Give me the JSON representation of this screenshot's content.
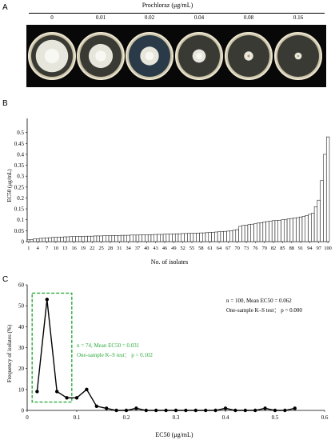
{
  "panel_letters": [
    "A",
    "B",
    "C"
  ],
  "panelA": {
    "title": "Prochloraz (μg/mL)",
    "concentrations": [
      "0",
      "0.01",
      "0.02",
      "0.04",
      "0.08",
      "0.16"
    ],
    "colony_size": [
      0.78,
      0.58,
      0.45,
      0.32,
      0.22,
      0.17
    ]
  },
  "chart_data": [
    {
      "type": "bar",
      "panel": "B",
      "ylabel": "EC50 (μg/mL)",
      "xlabel": "No. of isolates",
      "ylim": [
        0,
        0.55
      ],
      "yticks": [
        0,
        0.05,
        0.1,
        0.15,
        0.2,
        0.25,
        0.3,
        0.35,
        0.4,
        0.45,
        0.5
      ],
      "xticks": [
        "1",
        "4",
        "7",
        "10",
        "13",
        "16",
        "19",
        "22",
        "25",
        "28",
        "31",
        "34",
        "37",
        "40",
        "43",
        "46",
        "49",
        "52",
        "55",
        "58",
        "61",
        "64",
        "67",
        "70",
        "73",
        "76",
        "79",
        "82",
        "85",
        "88",
        "91",
        "94",
        "97",
        "100"
      ],
      "values": [
        0.008,
        0.01,
        0.012,
        0.013,
        0.015,
        0.016,
        0.017,
        0.018,
        0.019,
        0.02,
        0.021,
        0.021,
        0.022,
        0.022,
        0.023,
        0.023,
        0.024,
        0.024,
        0.024,
        0.025,
        0.025,
        0.025,
        0.026,
        0.026,
        0.026,
        0.027,
        0.027,
        0.027,
        0.028,
        0.028,
        0.028,
        0.029,
        0.029,
        0.029,
        0.03,
        0.03,
        0.03,
        0.031,
        0.031,
        0.031,
        0.032,
        0.032,
        0.033,
        0.033,
        0.033,
        0.034,
        0.034,
        0.035,
        0.035,
        0.036,
        0.036,
        0.037,
        0.037,
        0.038,
        0.038,
        0.039,
        0.039,
        0.04,
        0.04,
        0.041,
        0.042,
        0.043,
        0.044,
        0.045,
        0.046,
        0.047,
        0.048,
        0.05,
        0.052,
        0.055,
        0.07,
        0.074,
        0.076,
        0.078,
        0.08,
        0.082,
        0.085,
        0.087,
        0.09,
        0.092,
        0.094,
        0.096,
        0.097,
        0.098,
        0.1,
        0.102,
        0.104,
        0.106,
        0.108,
        0.11,
        0.113,
        0.116,
        0.12,
        0.125,
        0.13,
        0.16,
        0.19,
        0.28,
        0.4,
        0.48
      ]
    },
    {
      "type": "line",
      "panel": "C",
      "ylabel": "Frequency of isolates (%)",
      "xlabel": "EC50 (μg/mL)",
      "xlim": [
        0,
        0.6
      ],
      "ylim": [
        0,
        60
      ],
      "xticks": [
        0,
        0.1,
        0.2,
        0.3,
        0.4,
        0.5,
        0.6
      ],
      "yticks": [
        0,
        10,
        20,
        30,
        40,
        50,
        60
      ],
      "x": [
        0.02,
        0.04,
        0.06,
        0.08,
        0.1,
        0.12,
        0.14,
        0.16,
        0.18,
        0.2,
        0.22,
        0.24,
        0.26,
        0.28,
        0.3,
        0.32,
        0.34,
        0.36,
        0.38,
        0.4,
        0.42,
        0.44,
        0.46,
        0.48,
        0.5,
        0.52,
        0.54
      ],
      "y": [
        9,
        53,
        9,
        6,
        6,
        10,
        2,
        1,
        0,
        0,
        1,
        0,
        0,
        0,
        0,
        0,
        0,
        0,
        0,
        1,
        0,
        0,
        0,
        1,
        0,
        0,
        1
      ],
      "highlight_box": {
        "x": [
          0.01,
          0.09
        ],
        "y": [
          4,
          56
        ],
        "color": "#2eaa3c"
      },
      "annotation_all": {
        "line1": "n = 100, Mean EC50 = 0.062",
        "line2": "One-sample K–S  test： p = 0.000"
      },
      "annotation_subset": {
        "line1": "n = 74, Mean EC50 = 0.031",
        "line2": "One-sample K–S  test： p = 0.102",
        "color": "#2eaa3c"
      }
    }
  ]
}
